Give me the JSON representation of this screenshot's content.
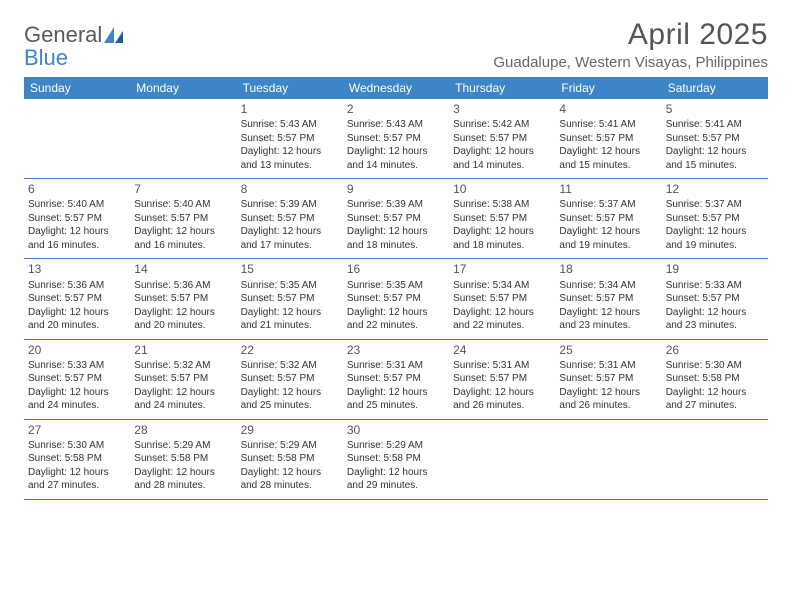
{
  "logo": {
    "word1": "General",
    "word2": "Blue"
  },
  "title": "April 2025",
  "location": "Guadalupe, Western Visayas, Philippines",
  "colors": {
    "header_bg": "#3d85c6",
    "header_text": "#ffffff",
    "page_bg": "#ffffff",
    "text": "#333333",
    "title_text": "#555555",
    "border": "#3d85c6"
  },
  "dayNames": [
    "Sunday",
    "Monday",
    "Tuesday",
    "Wednesday",
    "Thursday",
    "Friday",
    "Saturday"
  ],
  "weeks": [
    [
      {
        "n": "",
        "sr": "",
        "ss": "",
        "dl1": "",
        "dl2": ""
      },
      {
        "n": "",
        "sr": "",
        "ss": "",
        "dl1": "",
        "dl2": ""
      },
      {
        "n": "1",
        "sr": "Sunrise: 5:43 AM",
        "ss": "Sunset: 5:57 PM",
        "dl1": "Daylight: 12 hours",
        "dl2": "and 13 minutes."
      },
      {
        "n": "2",
        "sr": "Sunrise: 5:43 AM",
        "ss": "Sunset: 5:57 PM",
        "dl1": "Daylight: 12 hours",
        "dl2": "and 14 minutes."
      },
      {
        "n": "3",
        "sr": "Sunrise: 5:42 AM",
        "ss": "Sunset: 5:57 PM",
        "dl1": "Daylight: 12 hours",
        "dl2": "and 14 minutes."
      },
      {
        "n": "4",
        "sr": "Sunrise: 5:41 AM",
        "ss": "Sunset: 5:57 PM",
        "dl1": "Daylight: 12 hours",
        "dl2": "and 15 minutes."
      },
      {
        "n": "5",
        "sr": "Sunrise: 5:41 AM",
        "ss": "Sunset: 5:57 PM",
        "dl1": "Daylight: 12 hours",
        "dl2": "and 15 minutes."
      }
    ],
    [
      {
        "n": "6",
        "sr": "Sunrise: 5:40 AM",
        "ss": "Sunset: 5:57 PM",
        "dl1": "Daylight: 12 hours",
        "dl2": "and 16 minutes."
      },
      {
        "n": "7",
        "sr": "Sunrise: 5:40 AM",
        "ss": "Sunset: 5:57 PM",
        "dl1": "Daylight: 12 hours",
        "dl2": "and 16 minutes."
      },
      {
        "n": "8",
        "sr": "Sunrise: 5:39 AM",
        "ss": "Sunset: 5:57 PM",
        "dl1": "Daylight: 12 hours",
        "dl2": "and 17 minutes."
      },
      {
        "n": "9",
        "sr": "Sunrise: 5:39 AM",
        "ss": "Sunset: 5:57 PM",
        "dl1": "Daylight: 12 hours",
        "dl2": "and 18 minutes."
      },
      {
        "n": "10",
        "sr": "Sunrise: 5:38 AM",
        "ss": "Sunset: 5:57 PM",
        "dl1": "Daylight: 12 hours",
        "dl2": "and 18 minutes."
      },
      {
        "n": "11",
        "sr": "Sunrise: 5:37 AM",
        "ss": "Sunset: 5:57 PM",
        "dl1": "Daylight: 12 hours",
        "dl2": "and 19 minutes."
      },
      {
        "n": "12",
        "sr": "Sunrise: 5:37 AM",
        "ss": "Sunset: 5:57 PM",
        "dl1": "Daylight: 12 hours",
        "dl2": "and 19 minutes."
      }
    ],
    [
      {
        "n": "13",
        "sr": "Sunrise: 5:36 AM",
        "ss": "Sunset: 5:57 PM",
        "dl1": "Daylight: 12 hours",
        "dl2": "and 20 minutes."
      },
      {
        "n": "14",
        "sr": "Sunrise: 5:36 AM",
        "ss": "Sunset: 5:57 PM",
        "dl1": "Daylight: 12 hours",
        "dl2": "and 20 minutes."
      },
      {
        "n": "15",
        "sr": "Sunrise: 5:35 AM",
        "ss": "Sunset: 5:57 PM",
        "dl1": "Daylight: 12 hours",
        "dl2": "and 21 minutes."
      },
      {
        "n": "16",
        "sr": "Sunrise: 5:35 AM",
        "ss": "Sunset: 5:57 PM",
        "dl1": "Daylight: 12 hours",
        "dl2": "and 22 minutes."
      },
      {
        "n": "17",
        "sr": "Sunrise: 5:34 AM",
        "ss": "Sunset: 5:57 PM",
        "dl1": "Daylight: 12 hours",
        "dl2": "and 22 minutes."
      },
      {
        "n": "18",
        "sr": "Sunrise: 5:34 AM",
        "ss": "Sunset: 5:57 PM",
        "dl1": "Daylight: 12 hours",
        "dl2": "and 23 minutes."
      },
      {
        "n": "19",
        "sr": "Sunrise: 5:33 AM",
        "ss": "Sunset: 5:57 PM",
        "dl1": "Daylight: 12 hours",
        "dl2": "and 23 minutes."
      }
    ],
    [
      {
        "n": "20",
        "sr": "Sunrise: 5:33 AM",
        "ss": "Sunset: 5:57 PM",
        "dl1": "Daylight: 12 hours",
        "dl2": "and 24 minutes."
      },
      {
        "n": "21",
        "sr": "Sunrise: 5:32 AM",
        "ss": "Sunset: 5:57 PM",
        "dl1": "Daylight: 12 hours",
        "dl2": "and 24 minutes."
      },
      {
        "n": "22",
        "sr": "Sunrise: 5:32 AM",
        "ss": "Sunset: 5:57 PM",
        "dl1": "Daylight: 12 hours",
        "dl2": "and 25 minutes."
      },
      {
        "n": "23",
        "sr": "Sunrise: 5:31 AM",
        "ss": "Sunset: 5:57 PM",
        "dl1": "Daylight: 12 hours",
        "dl2": "and 25 minutes."
      },
      {
        "n": "24",
        "sr": "Sunrise: 5:31 AM",
        "ss": "Sunset: 5:57 PM",
        "dl1": "Daylight: 12 hours",
        "dl2": "and 26 minutes."
      },
      {
        "n": "25",
        "sr": "Sunrise: 5:31 AM",
        "ss": "Sunset: 5:57 PM",
        "dl1": "Daylight: 12 hours",
        "dl2": "and 26 minutes."
      },
      {
        "n": "26",
        "sr": "Sunrise: 5:30 AM",
        "ss": "Sunset: 5:58 PM",
        "dl1": "Daylight: 12 hours",
        "dl2": "and 27 minutes."
      }
    ],
    [
      {
        "n": "27",
        "sr": "Sunrise: 5:30 AM",
        "ss": "Sunset: 5:58 PM",
        "dl1": "Daylight: 12 hours",
        "dl2": "and 27 minutes."
      },
      {
        "n": "28",
        "sr": "Sunrise: 5:29 AM",
        "ss": "Sunset: 5:58 PM",
        "dl1": "Daylight: 12 hours",
        "dl2": "and 28 minutes."
      },
      {
        "n": "29",
        "sr": "Sunrise: 5:29 AM",
        "ss": "Sunset: 5:58 PM",
        "dl1": "Daylight: 12 hours",
        "dl2": "and 28 minutes."
      },
      {
        "n": "30",
        "sr": "Sunrise: 5:29 AM",
        "ss": "Sunset: 5:58 PM",
        "dl1": "Daylight: 12 hours",
        "dl2": "and 29 minutes."
      },
      {
        "n": "",
        "sr": "",
        "ss": "",
        "dl1": "",
        "dl2": ""
      },
      {
        "n": "",
        "sr": "",
        "ss": "",
        "dl1": "",
        "dl2": ""
      },
      {
        "n": "",
        "sr": "",
        "ss": "",
        "dl1": "",
        "dl2": ""
      }
    ]
  ]
}
